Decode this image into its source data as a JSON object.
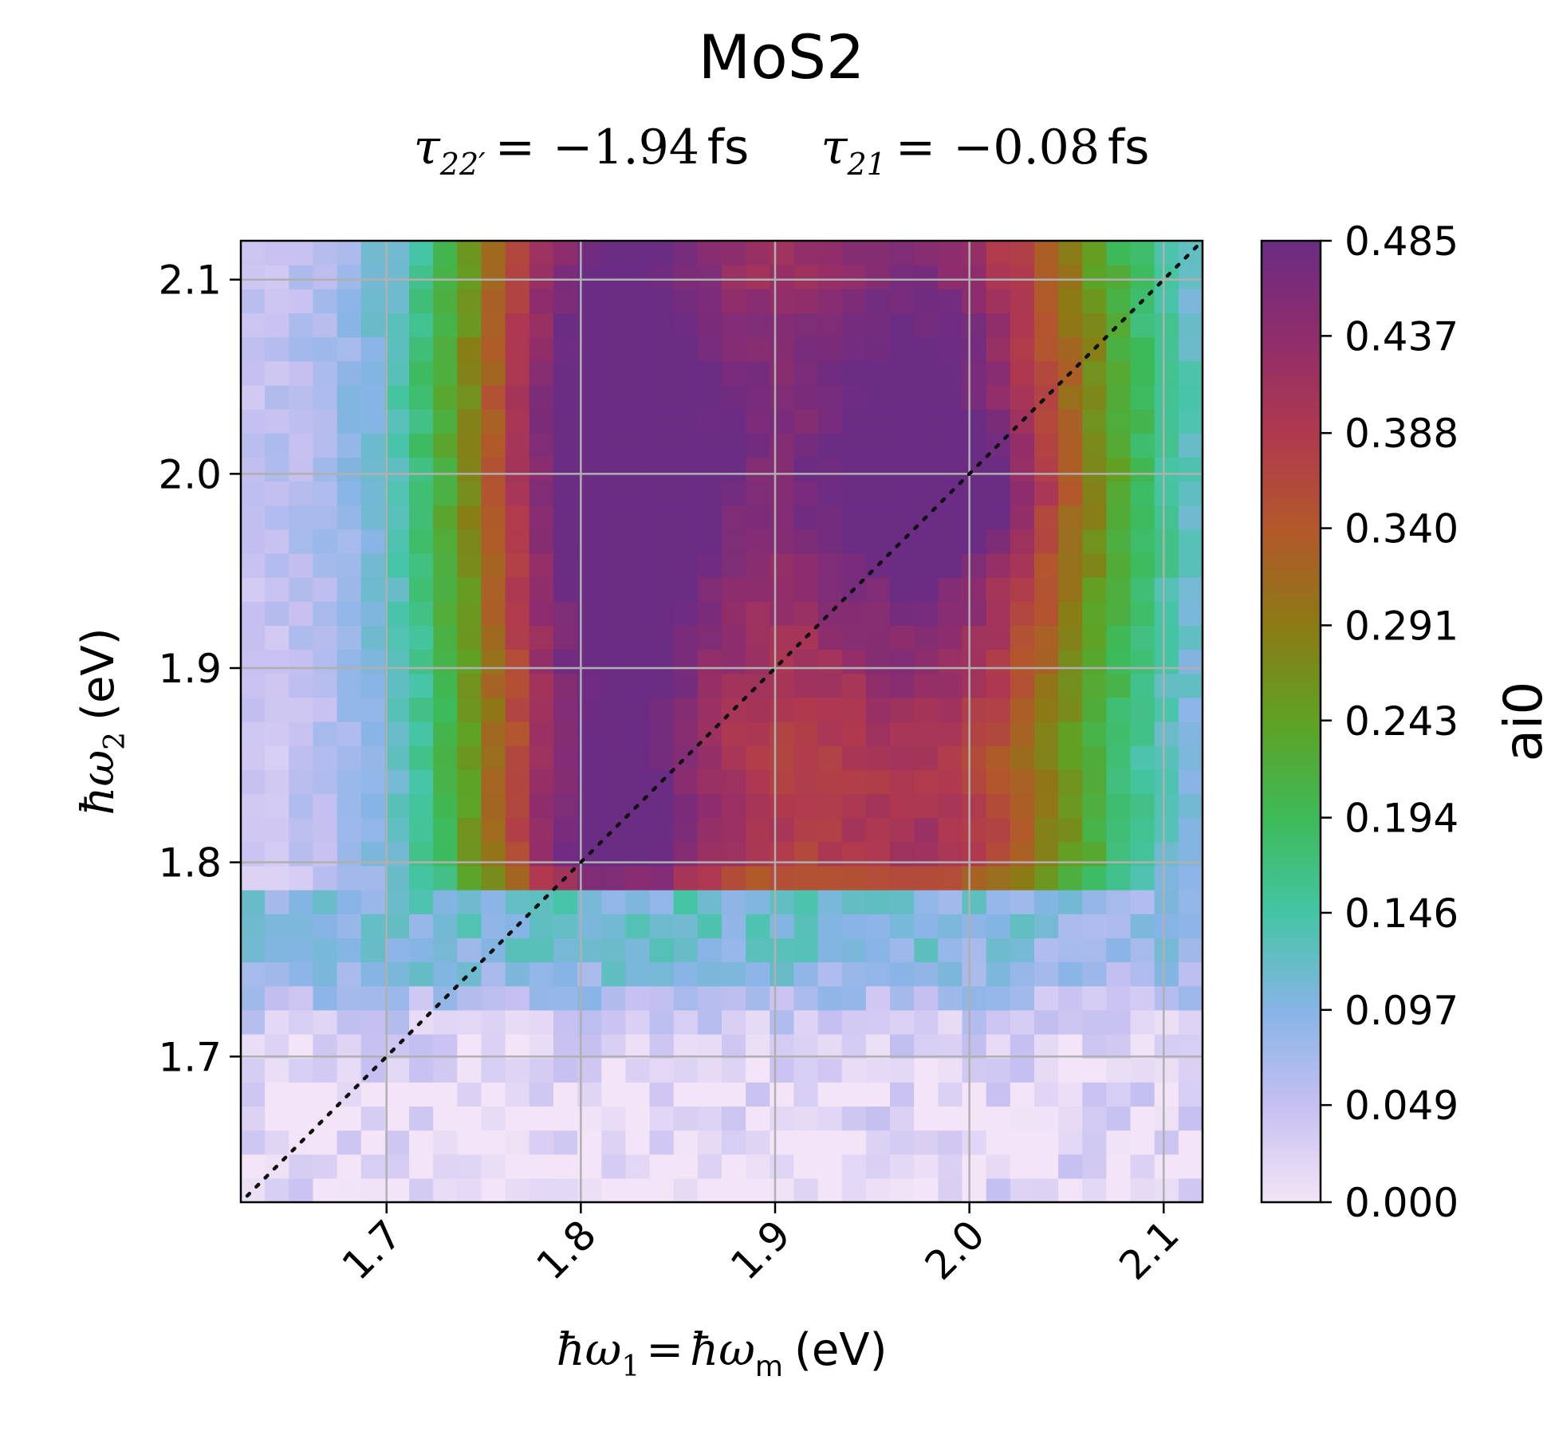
{
  "chart_data": {
    "type": "heatmap",
    "title": "MoS2",
    "subtitle": {
      "tau1": {
        "symbol": "τ",
        "sub": "22′",
        "value": "−1.94",
        "unit": "fs"
      },
      "tau2": {
        "symbol": "τ",
        "sub": "21",
        "value": "−0.08",
        "unit": "fs"
      },
      "eq": "="
    },
    "xlabel": {
      "hbar": "ħ",
      "omega": "ω",
      "sub1": "1",
      "eq": "=",
      "subm": "m",
      "unit": "(eV)"
    },
    "ylabel": {
      "hbar": "ħ",
      "omega": "ω",
      "sub2": "2",
      "unit": "(eV)"
    },
    "xlim": [
      1.625,
      2.12
    ],
    "ylim": [
      1.625,
      2.12
    ],
    "x_ticks": [
      "1.7",
      "1.8",
      "1.9",
      "2.0",
      "2.1"
    ],
    "y_ticks": [
      "1.7",
      "1.8",
      "1.9",
      "2.0",
      "2.1"
    ],
    "x_tick_values": [
      1.7,
      1.8,
      1.9,
      2.0,
      2.1
    ],
    "y_tick_values": [
      1.7,
      1.8,
      1.9,
      2.0,
      2.1
    ],
    "grid": true,
    "diagonal": "dotted x=y",
    "grid_size": 40,
    "colorbar": {
      "label": "ai0",
      "min": 0.0,
      "max": 0.485,
      "ticks": [
        "0.000",
        "0.049",
        "0.097",
        "0.146",
        "0.194",
        "0.243",
        "0.291",
        "0.340",
        "0.388",
        "0.437",
        "0.485"
      ],
      "tick_values": [
        0.0,
        0.049,
        0.097,
        0.146,
        0.194,
        0.243,
        0.291,
        0.34,
        0.388,
        0.437,
        0.485
      ],
      "colormap": [
        "#f3e5f7",
        "#c6c0f1",
        "#87b4e6",
        "#45c5a6",
        "#3dba58",
        "#5fa224",
        "#8c7a15",
        "#b3582b",
        "#b0394f",
        "#8f2d6c",
        "#6b2c84"
      ]
    },
    "model": {
      "description_x_peaks": [
        1.81,
        1.985
      ],
      "description_y_peaks": [
        1.82,
        1.99,
        2.06
      ]
    }
  }
}
